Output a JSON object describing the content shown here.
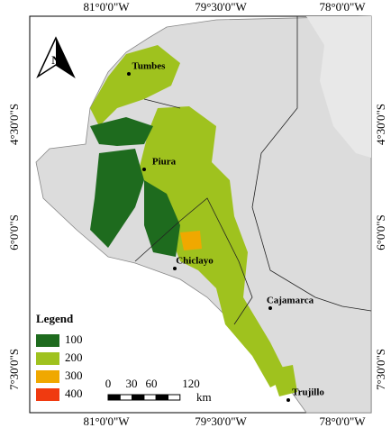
{
  "map": {
    "longitude_labels": [
      "81°0'0\"W",
      "79°30'0\"W",
      "78°0'0\"W"
    ],
    "latitude_labels": [
      "4°30'0\"S",
      "6°0'0\"S",
      "7°30'0\"S"
    ],
    "places": [
      "Tumbes",
      "Piura",
      "Chiclayo",
      "Cajamarca",
      "Trujillo"
    ],
    "north": "N",
    "legend": {
      "title": "Legend",
      "items": [
        {
          "label": "100",
          "color": "#1e6b1e"
        },
        {
          "label": "200",
          "color": "#9fc21e"
        },
        {
          "label": "300",
          "color": "#f0a800"
        },
        {
          "label": "400",
          "color": "#f03a10"
        }
      ]
    },
    "scale": {
      "labels": [
        "0",
        "30",
        "60",
        "120"
      ],
      "unit": "km"
    }
  }
}
